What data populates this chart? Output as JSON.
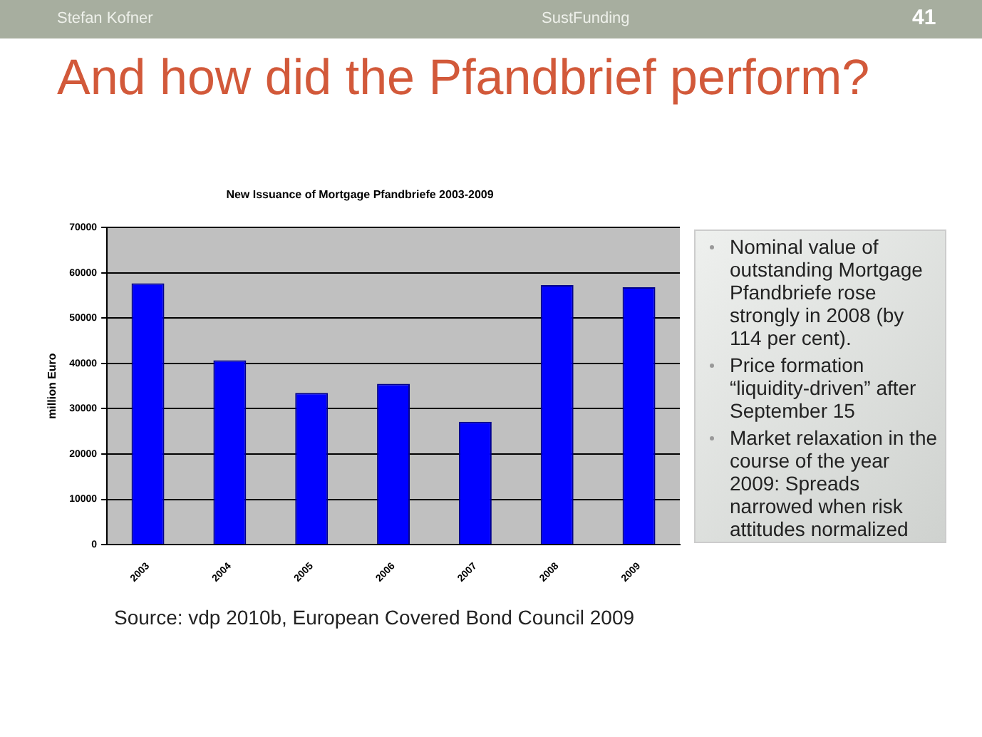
{
  "chart_data": {
    "type": "bar",
    "title": "New Issuance of Mortgage Pfandbriefe 2003-2009",
    "ylabel": "million Euro",
    "categories": [
      "2003",
      "2004",
      "2005",
      "2006",
      "2007",
      "2008",
      "2009"
    ],
    "values": [
      57700,
      40700,
      33500,
      35500,
      27100,
      57300,
      56800
    ],
    "color": "#0000ff",
    "ylim": [
      0,
      70000
    ],
    "yticks": [
      0,
      10000,
      20000,
      30000,
      40000,
      50000,
      60000,
      70000
    ],
    "grid": "y",
    "legend": false,
    "annotations": [
      "Stefan Kofner",
      "SustFunding",
      "41",
      "And how did the Pfandbrief perform?",
      "Nominal value of outstanding Mortgage Pfandbriefe rose strongly in 2008 (by 114 per cent).",
      "Price formation “liquidity-driven” after September 15",
      "Market relaxation in the course of the year 2009: Spreads narrowed when risk attitudes normalized",
      "Source: vdp 2010b, European Covered Bond Council 2009"
    ]
  }
}
